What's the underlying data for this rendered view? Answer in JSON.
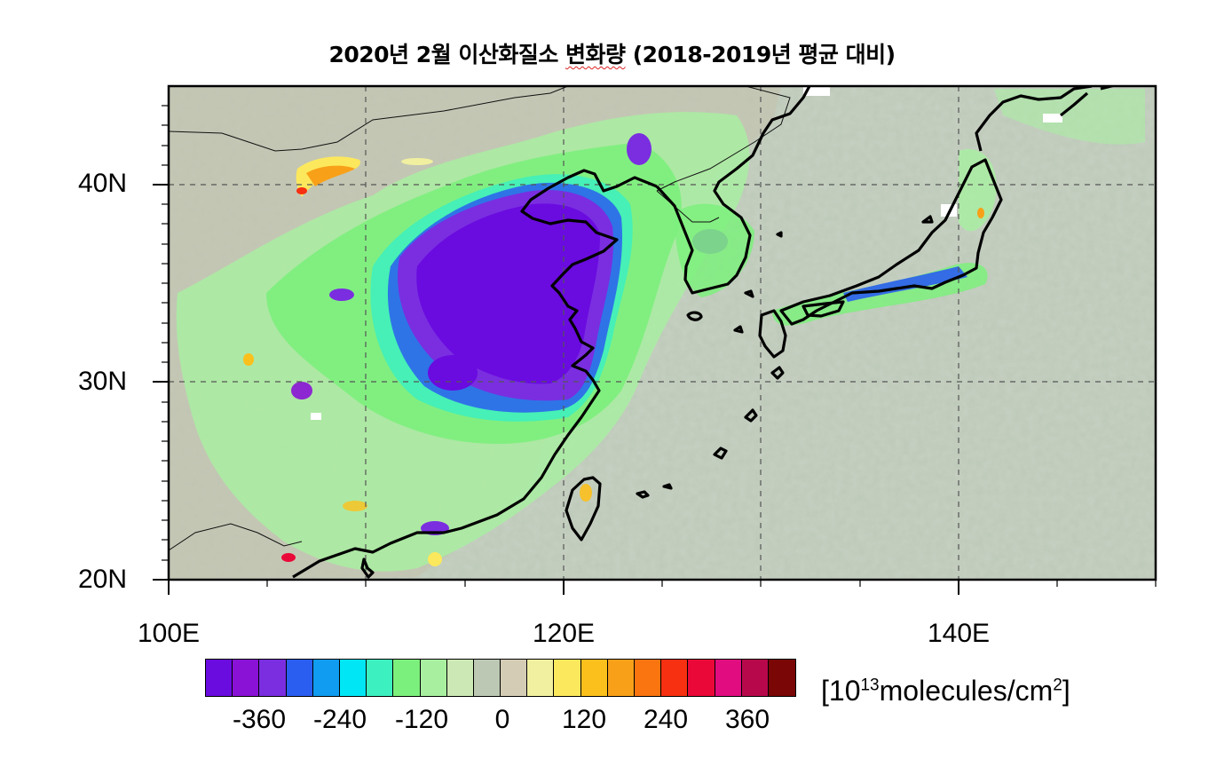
{
  "title": {
    "prefix": "2020년 2월 이산화질소 ",
    "underlined": "변화량",
    "suffix": " (2018-2019년 평균 대비)"
  },
  "map": {
    "type": "choropleth",
    "variable": "NO2 column change",
    "region": "East Asia",
    "lon_range": [
      100,
      150
    ],
    "lat_range": [
      20,
      45
    ],
    "lat_tick_labels": [
      "40N",
      "30N",
      "20N"
    ],
    "lon_tick_labels": [
      "100E",
      "120E",
      "140E"
    ],
    "grid": "dashed",
    "coastlines": true
  },
  "colorbar": {
    "colors": [
      "#6a0be0",
      "#8a12d6",
      "#7a2ee0",
      "#2a5ef0",
      "#109cf0",
      "#00e6f5",
      "#3cf0c0",
      "#7cf07c",
      "#a8f0a0",
      "#cce8b4",
      "#bcc8b4",
      "#d4ccb4",
      "#f0f0a0",
      "#fce85c",
      "#fcc01c",
      "#f8a018",
      "#fa7410",
      "#f63010",
      "#ea0838",
      "#e00c80",
      "#b8084c",
      "#7a0606"
    ],
    "tick_labels": [
      "-360",
      "-240",
      "-120",
      "0",
      "120",
      "240",
      "360"
    ],
    "units_prefix": "[10",
    "units_exp1": "13",
    "units_mid": "molecules/cm",
    "units_exp2": "2",
    "units_suffix": "]"
  }
}
